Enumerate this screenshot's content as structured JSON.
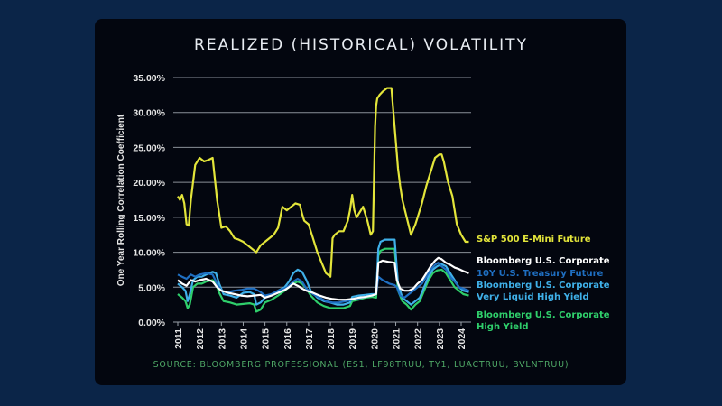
{
  "chart_data": {
    "type": "line",
    "title": "REALIZED (HISTORICAL) VOLATILITY",
    "xlabel": "",
    "ylabel": "One Year Rolling Correlation Coefficient",
    "ylim": [
      0,
      35
    ],
    "xlim": [
      2011,
      2024.5
    ],
    "grid": true,
    "legend_placement": "right",
    "y_ticks": [
      "0.00%",
      "5.00%",
      "10.00%",
      "15.00%",
      "20.00%",
      "25.00%",
      "30.00%",
      "35.00%"
    ],
    "y_tick_values": [
      0,
      5,
      10,
      15,
      20,
      25,
      30,
      35
    ],
    "x_ticks": [
      "2011",
      "2012",
      "2013",
      "2014",
      "2015",
      "2016",
      "2017",
      "2018",
      "2019",
      "2020",
      "2021",
      "2022",
      "2023",
      "2024"
    ],
    "x_tick_values": [
      2011,
      2012,
      2013,
      2014,
      2015,
      2016,
      2017,
      2018,
      2019,
      2020,
      2021,
      2022,
      2023,
      2024
    ],
    "source": "SOURCE: BLOOMBERG PROFESSIONAL (ES1, LF98TRUU, TY1, LUACTRUU, BVLNTRUU)",
    "series": [
      {
        "name": "S&P 500 E-Mini Future",
        "legend_lines": [
          "S&P 500 E-Mini Future"
        ],
        "color": "#e3e53a",
        "x": [
          2011.0,
          2011.1,
          2011.2,
          2011.3,
          2011.4,
          2011.5,
          2011.6,
          2011.7,
          2011.8,
          2012.0,
          2012.2,
          2012.4,
          2012.6,
          2012.75,
          2012.8,
          2012.9,
          2013.0,
          2013.2,
          2013.4,
          2013.6,
          2013.8,
          2014.0,
          2014.2,
          2014.4,
          2014.6,
          2014.8,
          2015.0,
          2015.2,
          2015.4,
          2015.6,
          2015.8,
          2016.0,
          2016.2,
          2016.4,
          2016.6,
          2016.7,
          2016.8,
          2017.0,
          2017.2,
          2017.4,
          2017.6,
          2017.8,
          2018.0,
          2018.05,
          2018.1,
          2018.2,
          2018.4,
          2018.6,
          2018.8,
          2018.9,
          2019.0,
          2019.1,
          2019.2,
          2019.3,
          2019.5,
          2019.6,
          2019.7,
          2019.85,
          2019.95,
          2020.05,
          2020.1,
          2020.15,
          2020.25,
          2020.4,
          2020.6,
          2020.8,
          2021.0,
          2021.1,
          2021.2,
          2021.3,
          2021.5,
          2021.7,
          2021.9,
          2022.0,
          2022.2,
          2022.4,
          2022.6,
          2022.8,
          2023.0,
          2023.1,
          2023.2,
          2023.4,
          2023.6,
          2023.8,
          2024.0,
          2024.2,
          2024.35
        ],
        "values": [
          18.0,
          17.5,
          18.2,
          17.0,
          14.0,
          13.8,
          17.5,
          20.0,
          22.5,
          23.5,
          23.0,
          23.2,
          23.5,
          19.0,
          17.5,
          15.5,
          13.5,
          13.7,
          13.0,
          12.0,
          11.8,
          11.5,
          11.0,
          10.5,
          10.0,
          11.0,
          11.5,
          12.0,
          12.5,
          13.5,
          16.5,
          16.0,
          16.5,
          17.0,
          16.8,
          15.5,
          14.5,
          14.0,
          12.0,
          10.0,
          8.5,
          7.0,
          6.5,
          9.0,
          12.0,
          12.5,
          13.0,
          13.0,
          14.5,
          16.0,
          18.2,
          16.0,
          15.0,
          15.5,
          16.5,
          15.5,
          14.5,
          12.5,
          13.0,
          28.0,
          31.0,
          32.0,
          32.5,
          33.0,
          33.5,
          33.5,
          26.0,
          22.0,
          19.5,
          17.5,
          15.0,
          12.5,
          14.0,
          15.0,
          17.0,
          19.5,
          21.5,
          23.5,
          24.0,
          24.0,
          23.0,
          20.0,
          18.0,
          14.0,
          12.5,
          11.5,
          11.5
        ]
      },
      {
        "name": "Bloomberg U.S. Corporate",
        "legend_lines": [
          "Bloomberg U.S. Corporate"
        ],
        "color": "#ffffff",
        "x": [
          2011.0,
          2011.2,
          2011.4,
          2011.6,
          2011.8,
          2012.0,
          2012.3,
          2012.6,
          2012.8,
          2013.0,
          2013.3,
          2013.6,
          2013.9,
          2014.2,
          2014.5,
          2014.8,
          2015.0,
          2015.3,
          2015.6,
          2015.9,
          2016.1,
          2016.3,
          2016.5,
          2016.7,
          2016.9,
          2017.2,
          2017.5,
          2017.8,
          2018.1,
          2018.4,
          2018.7,
          2019.0,
          2019.3,
          2019.6,
          2019.9,
          2020.1,
          2020.2,
          2020.4,
          2020.7,
          2020.95,
          2021.05,
          2021.2,
          2021.4,
          2021.6,
          2021.8,
          2022.0,
          2022.2,
          2022.4,
          2022.6,
          2022.8,
          2022.95,
          2023.1,
          2023.3,
          2023.5,
          2023.7,
          2023.9,
          2024.1,
          2024.35
        ],
        "values": [
          6.0,
          5.5,
          5.2,
          6.0,
          5.8,
          6.0,
          6.2,
          5.8,
          5.0,
          4.5,
          4.2,
          4.0,
          3.8,
          3.7,
          3.8,
          3.9,
          3.5,
          3.8,
          4.2,
          4.6,
          5.0,
          5.5,
          5.2,
          4.8,
          4.5,
          4.2,
          3.8,
          3.5,
          3.3,
          3.2,
          3.2,
          3.3,
          3.5,
          3.6,
          3.8,
          4.0,
          8.5,
          8.8,
          8.6,
          8.5,
          6.0,
          4.8,
          4.5,
          4.5,
          4.8,
          5.5,
          6.0,
          7.0,
          8.0,
          8.8,
          9.2,
          9.0,
          8.5,
          8.2,
          7.8,
          7.6,
          7.3,
          7.0
        ]
      },
      {
        "name": "10Y U.S. Treasury Future",
        "legend_lines": [
          "10Y U.S. Treasury Future"
        ],
        "color": "#1f6fc2",
        "x": [
          2011.0,
          2011.2,
          2011.4,
          2011.6,
          2011.8,
          2012.0,
          2012.3,
          2012.6,
          2012.8,
          2013.0,
          2013.3,
          2013.6,
          2013.9,
          2014.2,
          2014.5,
          2014.8,
          2015.0,
          2015.3,
          2015.6,
          2015.9,
          2016.1,
          2016.3,
          2016.5,
          2016.7,
          2016.9,
          2017.2,
          2017.5,
          2017.8,
          2018.1,
          2018.4,
          2018.7,
          2019.0,
          2019.3,
          2019.6,
          2019.9,
          2020.1,
          2020.2,
          2020.4,
          2020.7,
          2020.95,
          2021.05,
          2021.2,
          2021.4,
          2021.6,
          2021.8,
          2022.0,
          2022.2,
          2022.4,
          2022.6,
          2022.8,
          2022.95,
          2023.1,
          2023.3,
          2023.5,
          2023.7,
          2023.9,
          2024.1,
          2024.35
        ],
        "values": [
          6.8,
          6.5,
          6.2,
          6.8,
          6.5,
          6.8,
          7.0,
          6.8,
          5.5,
          4.5,
          4.3,
          4.5,
          4.6,
          4.8,
          4.8,
          4.3,
          3.8,
          4.0,
          4.5,
          4.8,
          5.2,
          5.8,
          6.2,
          5.8,
          4.8,
          4.0,
          3.5,
          3.0,
          2.8,
          2.8,
          3.0,
          3.2,
          3.4,
          3.6,
          3.8,
          4.0,
          6.5,
          6.0,
          5.5,
          5.3,
          5.0,
          3.8,
          3.5,
          4.0,
          4.5,
          5.0,
          5.5,
          6.5,
          7.5,
          8.2,
          8.5,
          8.0,
          7.5,
          6.5,
          5.8,
          5.0,
          4.8,
          4.5
        ]
      },
      {
        "name": "Bloomberg U.S. Corporate Very Liquid High Yield",
        "legend_lines": [
          "Bloomberg U.S. Corporate",
          "Very Liquid High Yield"
        ],
        "color": "#3fb0e8",
        "x": [
          2011.0,
          2011.2,
          2011.35,
          2011.45,
          2011.55,
          2011.7,
          2011.9,
          2012.1,
          2012.3,
          2012.6,
          2012.75,
          2012.9,
          2013.1,
          2013.4,
          2013.7,
          2014.0,
          2014.3,
          2014.5,
          2014.6,
          2014.8,
          2015.0,
          2015.3,
          2015.6,
          2015.9,
          2016.1,
          2016.3,
          2016.5,
          2016.7,
          2016.9,
          2017.1,
          2017.4,
          2017.7,
          2018.0,
          2018.3,
          2018.6,
          2018.9,
          2019.0,
          2019.3,
          2019.6,
          2019.9,
          2020.1,
          2020.2,
          2020.3,
          2020.5,
          2020.8,
          2020.95,
          2021.1,
          2021.3,
          2021.5,
          2021.7,
          2021.9,
          2022.1,
          2022.3,
          2022.5,
          2022.7,
          2022.9,
          2023.1,
          2023.3,
          2023.5,
          2023.7,
          2023.9,
          2024.1,
          2024.35
        ],
        "values": [
          5.5,
          5.0,
          4.5,
          3.0,
          4.0,
          6.0,
          6.5,
          6.5,
          6.8,
          7.2,
          7.0,
          5.5,
          4.0,
          3.8,
          3.5,
          4.2,
          4.3,
          4.0,
          2.5,
          2.8,
          3.5,
          4.0,
          4.5,
          5.0,
          5.8,
          7.0,
          7.5,
          7.2,
          6.0,
          4.5,
          3.5,
          3.0,
          2.8,
          2.5,
          2.5,
          2.8,
          3.6,
          3.8,
          3.9,
          4.0,
          4.0,
          10.5,
          11.5,
          11.8,
          11.8,
          11.8,
          5.5,
          3.5,
          3.0,
          2.5,
          3.0,
          3.5,
          5.0,
          6.5,
          7.5,
          8.0,
          8.3,
          8.0,
          7.0,
          6.0,
          5.0,
          4.5,
          4.3
        ]
      },
      {
        "name": "Bloomberg U.S. Corporate High Yield",
        "legend_lines": [
          "Bloomberg U.S. Corporate",
          "High Yield"
        ],
        "color": "#2fcf6b",
        "x": [
          2011.0,
          2011.2,
          2011.35,
          2011.45,
          2011.55,
          2011.7,
          2011.9,
          2012.1,
          2012.3,
          2012.6,
          2012.75,
          2012.9,
          2013.1,
          2013.4,
          2013.7,
          2014.0,
          2014.3,
          2014.5,
          2014.6,
          2014.8,
          2015.0,
          2015.3,
          2015.6,
          2015.9,
          2016.1,
          2016.3,
          2016.5,
          2016.7,
          2016.9,
          2017.1,
          2017.4,
          2017.7,
          2018.0,
          2018.3,
          2018.6,
          2018.9,
          2019.0,
          2019.3,
          2019.6,
          2019.9,
          2020.1,
          2020.2,
          2020.3,
          2020.5,
          2020.8,
          2020.95,
          2021.1,
          2021.3,
          2021.5,
          2021.7,
          2021.9,
          2022.1,
          2022.3,
          2022.5,
          2022.7,
          2022.9,
          2023.1,
          2023.3,
          2023.5,
          2023.7,
          2023.9,
          2024.1,
          2024.35
        ],
        "values": [
          4.0,
          3.5,
          3.0,
          2.0,
          2.5,
          5.0,
          5.5,
          5.5,
          5.8,
          6.0,
          5.5,
          4.2,
          3.0,
          2.8,
          2.5,
          2.6,
          2.7,
          2.5,
          1.5,
          1.8,
          2.8,
          3.2,
          3.8,
          4.5,
          5.0,
          5.5,
          5.8,
          5.5,
          4.8,
          3.8,
          2.8,
          2.3,
          2.0,
          2.0,
          2.0,
          2.3,
          3.0,
          3.2,
          3.5,
          3.6,
          3.5,
          9.5,
          10.2,
          10.5,
          10.5,
          10.5,
          4.5,
          3.0,
          2.5,
          1.8,
          2.5,
          3.0,
          4.5,
          6.0,
          7.0,
          7.4,
          7.5,
          7.0,
          6.0,
          5.0,
          4.5,
          4.0,
          3.8
        ]
      }
    ]
  }
}
